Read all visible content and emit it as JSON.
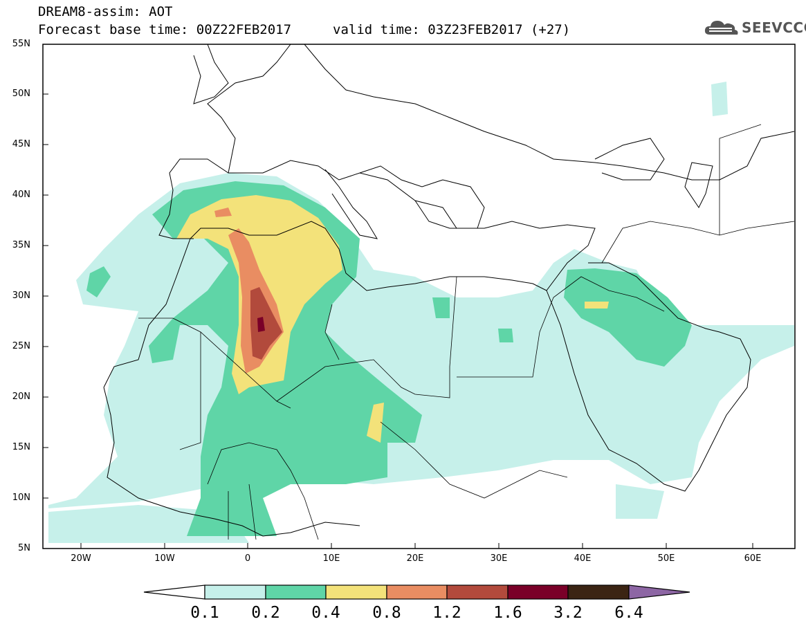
{
  "header": {
    "line1": "DREAM8-assim: AOT",
    "line2": "Forecast base time: 00Z22FEB2017",
    "valid": "valid time: 03Z23FEB2017 (+27)"
  },
  "logo": {
    "text": "SEEVCCC",
    "icon": "cloud-icon"
  },
  "map": {
    "lat_labels": [
      "55N",
      "50N",
      "45N",
      "40N",
      "35N",
      "30N",
      "25N",
      "20N",
      "15N",
      "10N",
      "5N"
    ],
    "lon_labels": [
      "20W",
      "10W",
      "0",
      "10E",
      "20E",
      "30E",
      "40E",
      "50E",
      "60E"
    ],
    "lat_range": [
      5,
      55
    ],
    "lon_range": [
      -25,
      65
    ]
  },
  "colorbar": {
    "labels": [
      "0.1",
      "0.2",
      "0.4",
      "0.8",
      "1.2",
      "1.6",
      "3.2",
      "6.4"
    ],
    "colors": [
      "#ffffff",
      "#c6f0ea",
      "#5fd5a7",
      "#f3e27a",
      "#e98d62",
      "#b24a3c",
      "#7a0028",
      "#3b2413",
      "#8d66a4"
    ]
  }
}
